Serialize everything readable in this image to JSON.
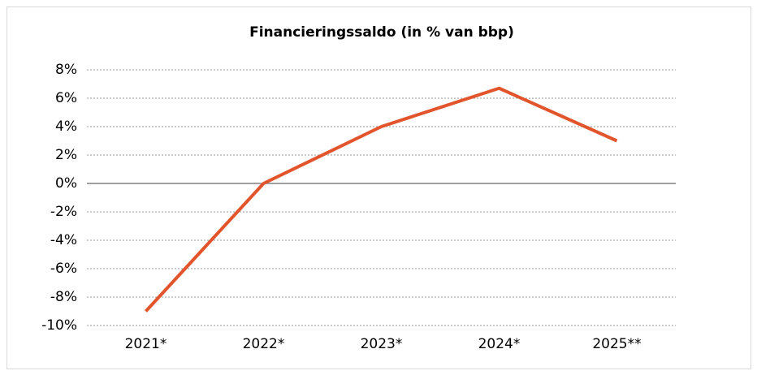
{
  "chart_data": {
    "type": "line",
    "title": "Financieringssaldo (in % van bbp)",
    "categories": [
      "2021*",
      "2022*",
      "2023*",
      "2024*",
      "2025**"
    ],
    "values": [
      -9,
      0,
      4,
      6.7,
      3
    ],
    "color": "#e2552c",
    "ylim": [
      -10,
      8
    ],
    "yticks": [
      {
        "value": -10,
        "label": "-10%"
      },
      {
        "value": -8,
        "label": "-8%"
      },
      {
        "value": -6,
        "label": "-6%"
      },
      {
        "value": -4,
        "label": "-4%"
      },
      {
        "value": -2,
        "label": "-2%"
      },
      {
        "value": 0,
        "label": "0%"
      },
      {
        "value": 2,
        "label": "2%"
      },
      {
        "value": 4,
        "label": "4%"
      },
      {
        "value": 6,
        "label": "6%"
      },
      {
        "value": 8,
        "label": "8%"
      }
    ],
    "grid": true
  }
}
